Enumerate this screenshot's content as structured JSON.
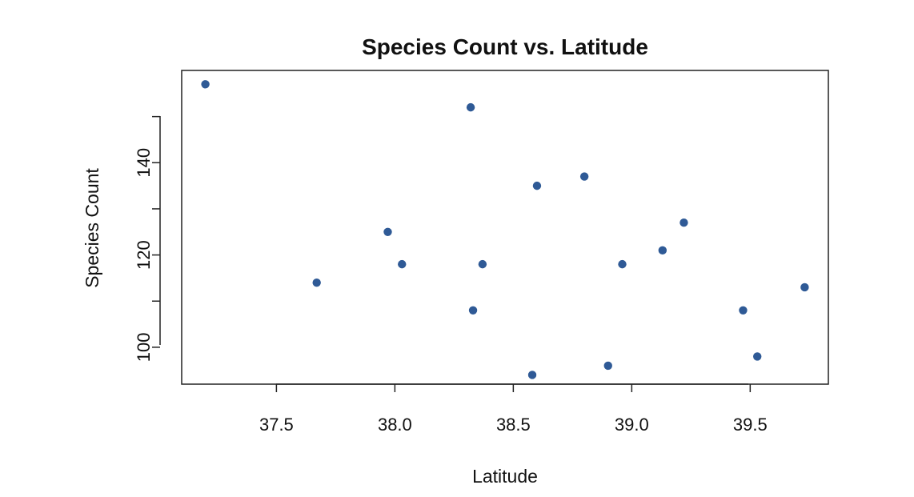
{
  "chart_data": {
    "type": "scatter",
    "title": "Species Count vs. Latitude",
    "xlabel": "Latitude",
    "ylabel": "Species Count",
    "xlim": [
      37.1,
      39.83
    ],
    "ylim": [
      92,
      160
    ],
    "x_ticks": [
      37.5,
      38.0,
      38.5,
      39.0,
      39.5
    ],
    "x_tick_labels": [
      "37.5",
      "38.0",
      "38.5",
      "39.0",
      "39.5"
    ],
    "y_ticks": [
      100,
      110,
      120,
      130,
      140,
      150
    ],
    "y_tick_labels": [
      "100",
      "",
      "120",
      "",
      "140",
      ""
    ],
    "grid": false,
    "marker_color": "#2f5a96",
    "points": [
      {
        "x": 37.2,
        "y": 157
      },
      {
        "x": 37.67,
        "y": 114
      },
      {
        "x": 37.97,
        "y": 125
      },
      {
        "x": 38.03,
        "y": 118
      },
      {
        "x": 38.32,
        "y": 152
      },
      {
        "x": 38.33,
        "y": 108
      },
      {
        "x": 38.37,
        "y": 118
      },
      {
        "x": 38.58,
        "y": 94
      },
      {
        "x": 38.6,
        "y": 135
      },
      {
        "x": 38.8,
        "y": 137
      },
      {
        "x": 38.9,
        "y": 96
      },
      {
        "x": 38.96,
        "y": 118
      },
      {
        "x": 39.13,
        "y": 121
      },
      {
        "x": 39.22,
        "y": 127
      },
      {
        "x": 39.47,
        "y": 108
      },
      {
        "x": 39.53,
        "y": 98
      },
      {
        "x": 39.73,
        "y": 113
      }
    ]
  }
}
